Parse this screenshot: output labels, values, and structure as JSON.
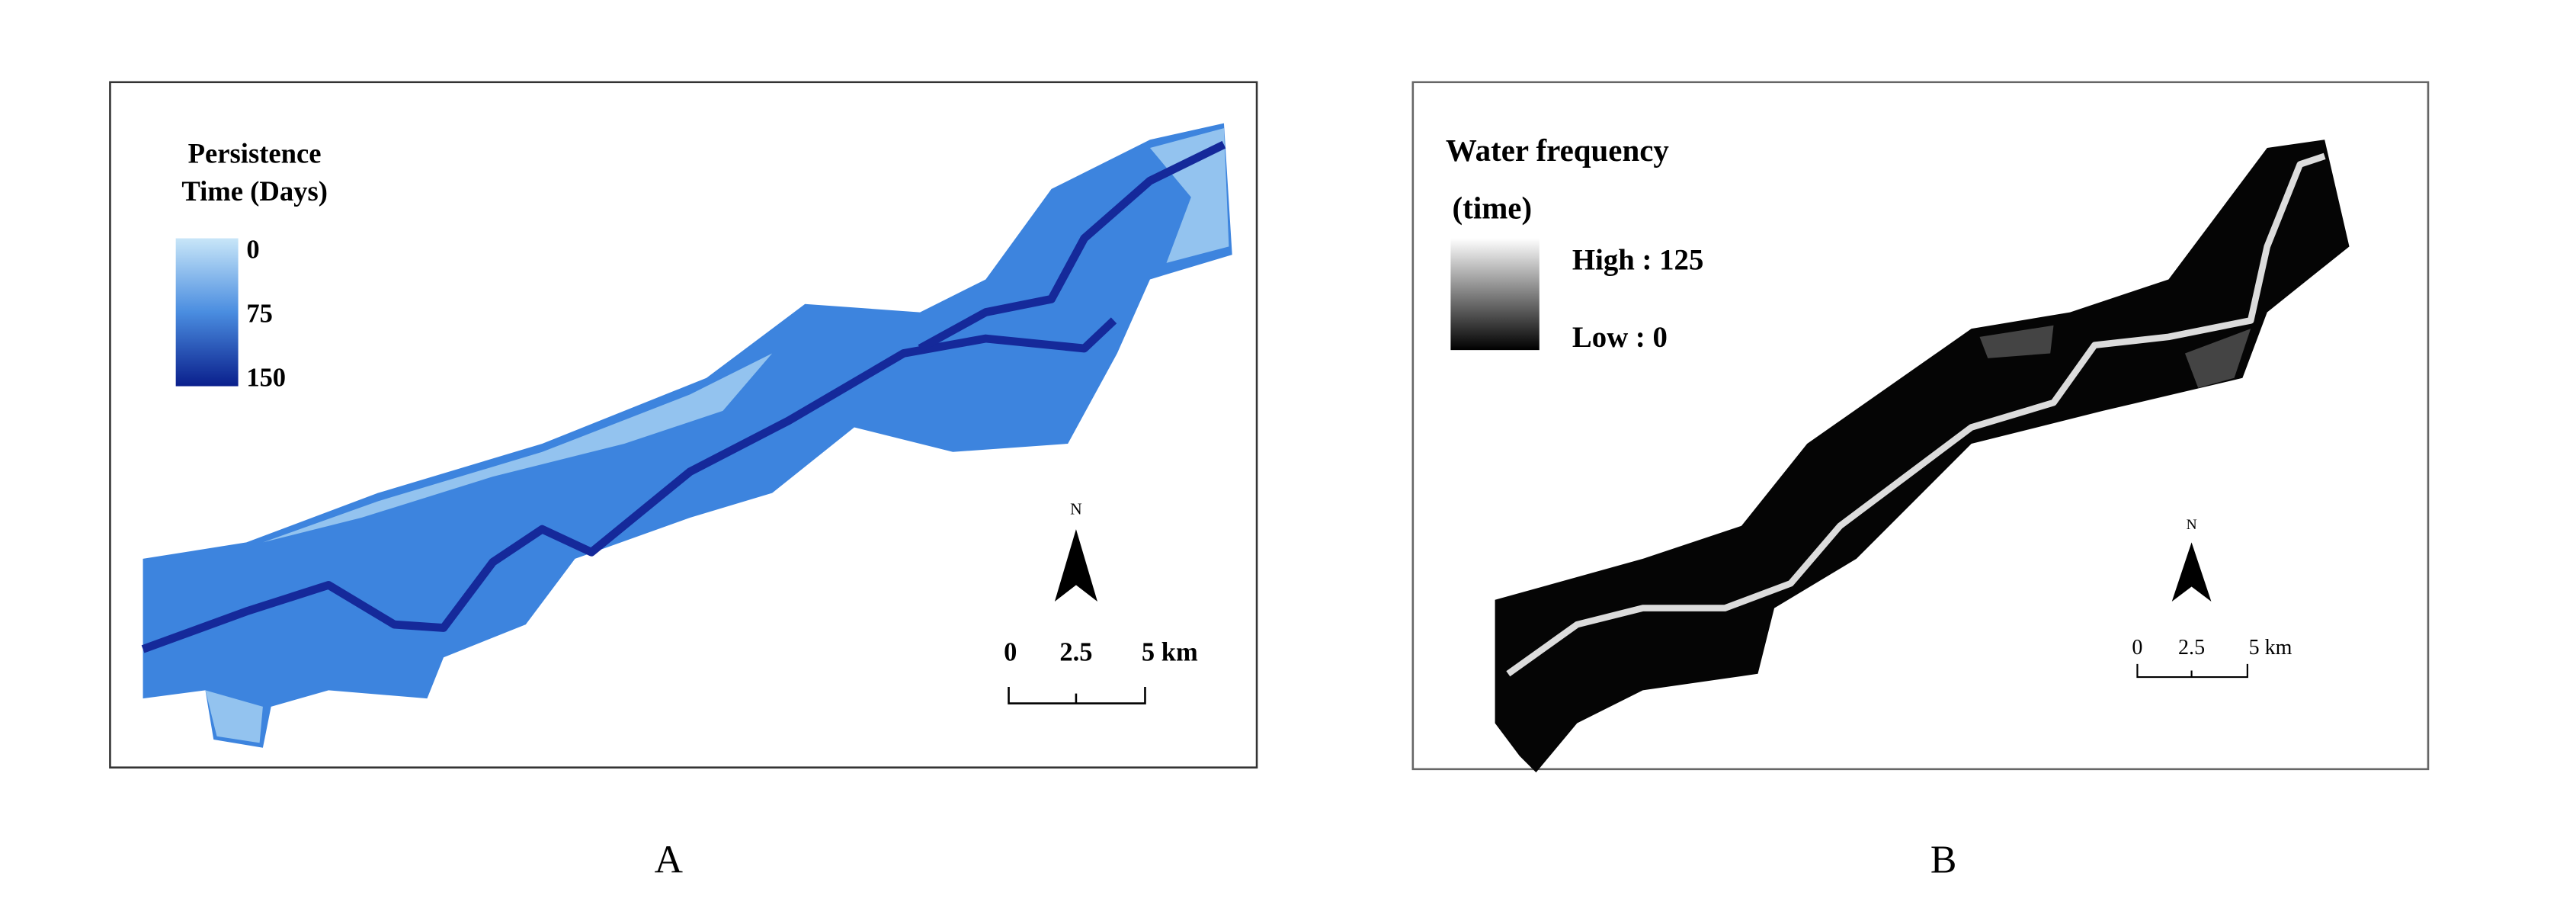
{
  "panels": [
    {
      "legend": {
        "title_lines": [
          "Persistence",
          "Time (Days)"
        ],
        "labels": [
          "0",
          "75",
          "150"
        ]
      },
      "north": "N",
      "scale": {
        "labels": [
          "0",
          "2.5",
          "5 km"
        ]
      },
      "caption": "A"
    },
    {
      "legend": {
        "title_lines": [
          "Water frequency",
          "(time)"
        ],
        "labels": [
          "High : 125",
          "Low : 0"
        ]
      },
      "north": "N",
      "scale": {
        "labels": [
          "0",
          "2.5",
          "5 km"
        ]
      },
      "caption": "B"
    }
  ]
}
